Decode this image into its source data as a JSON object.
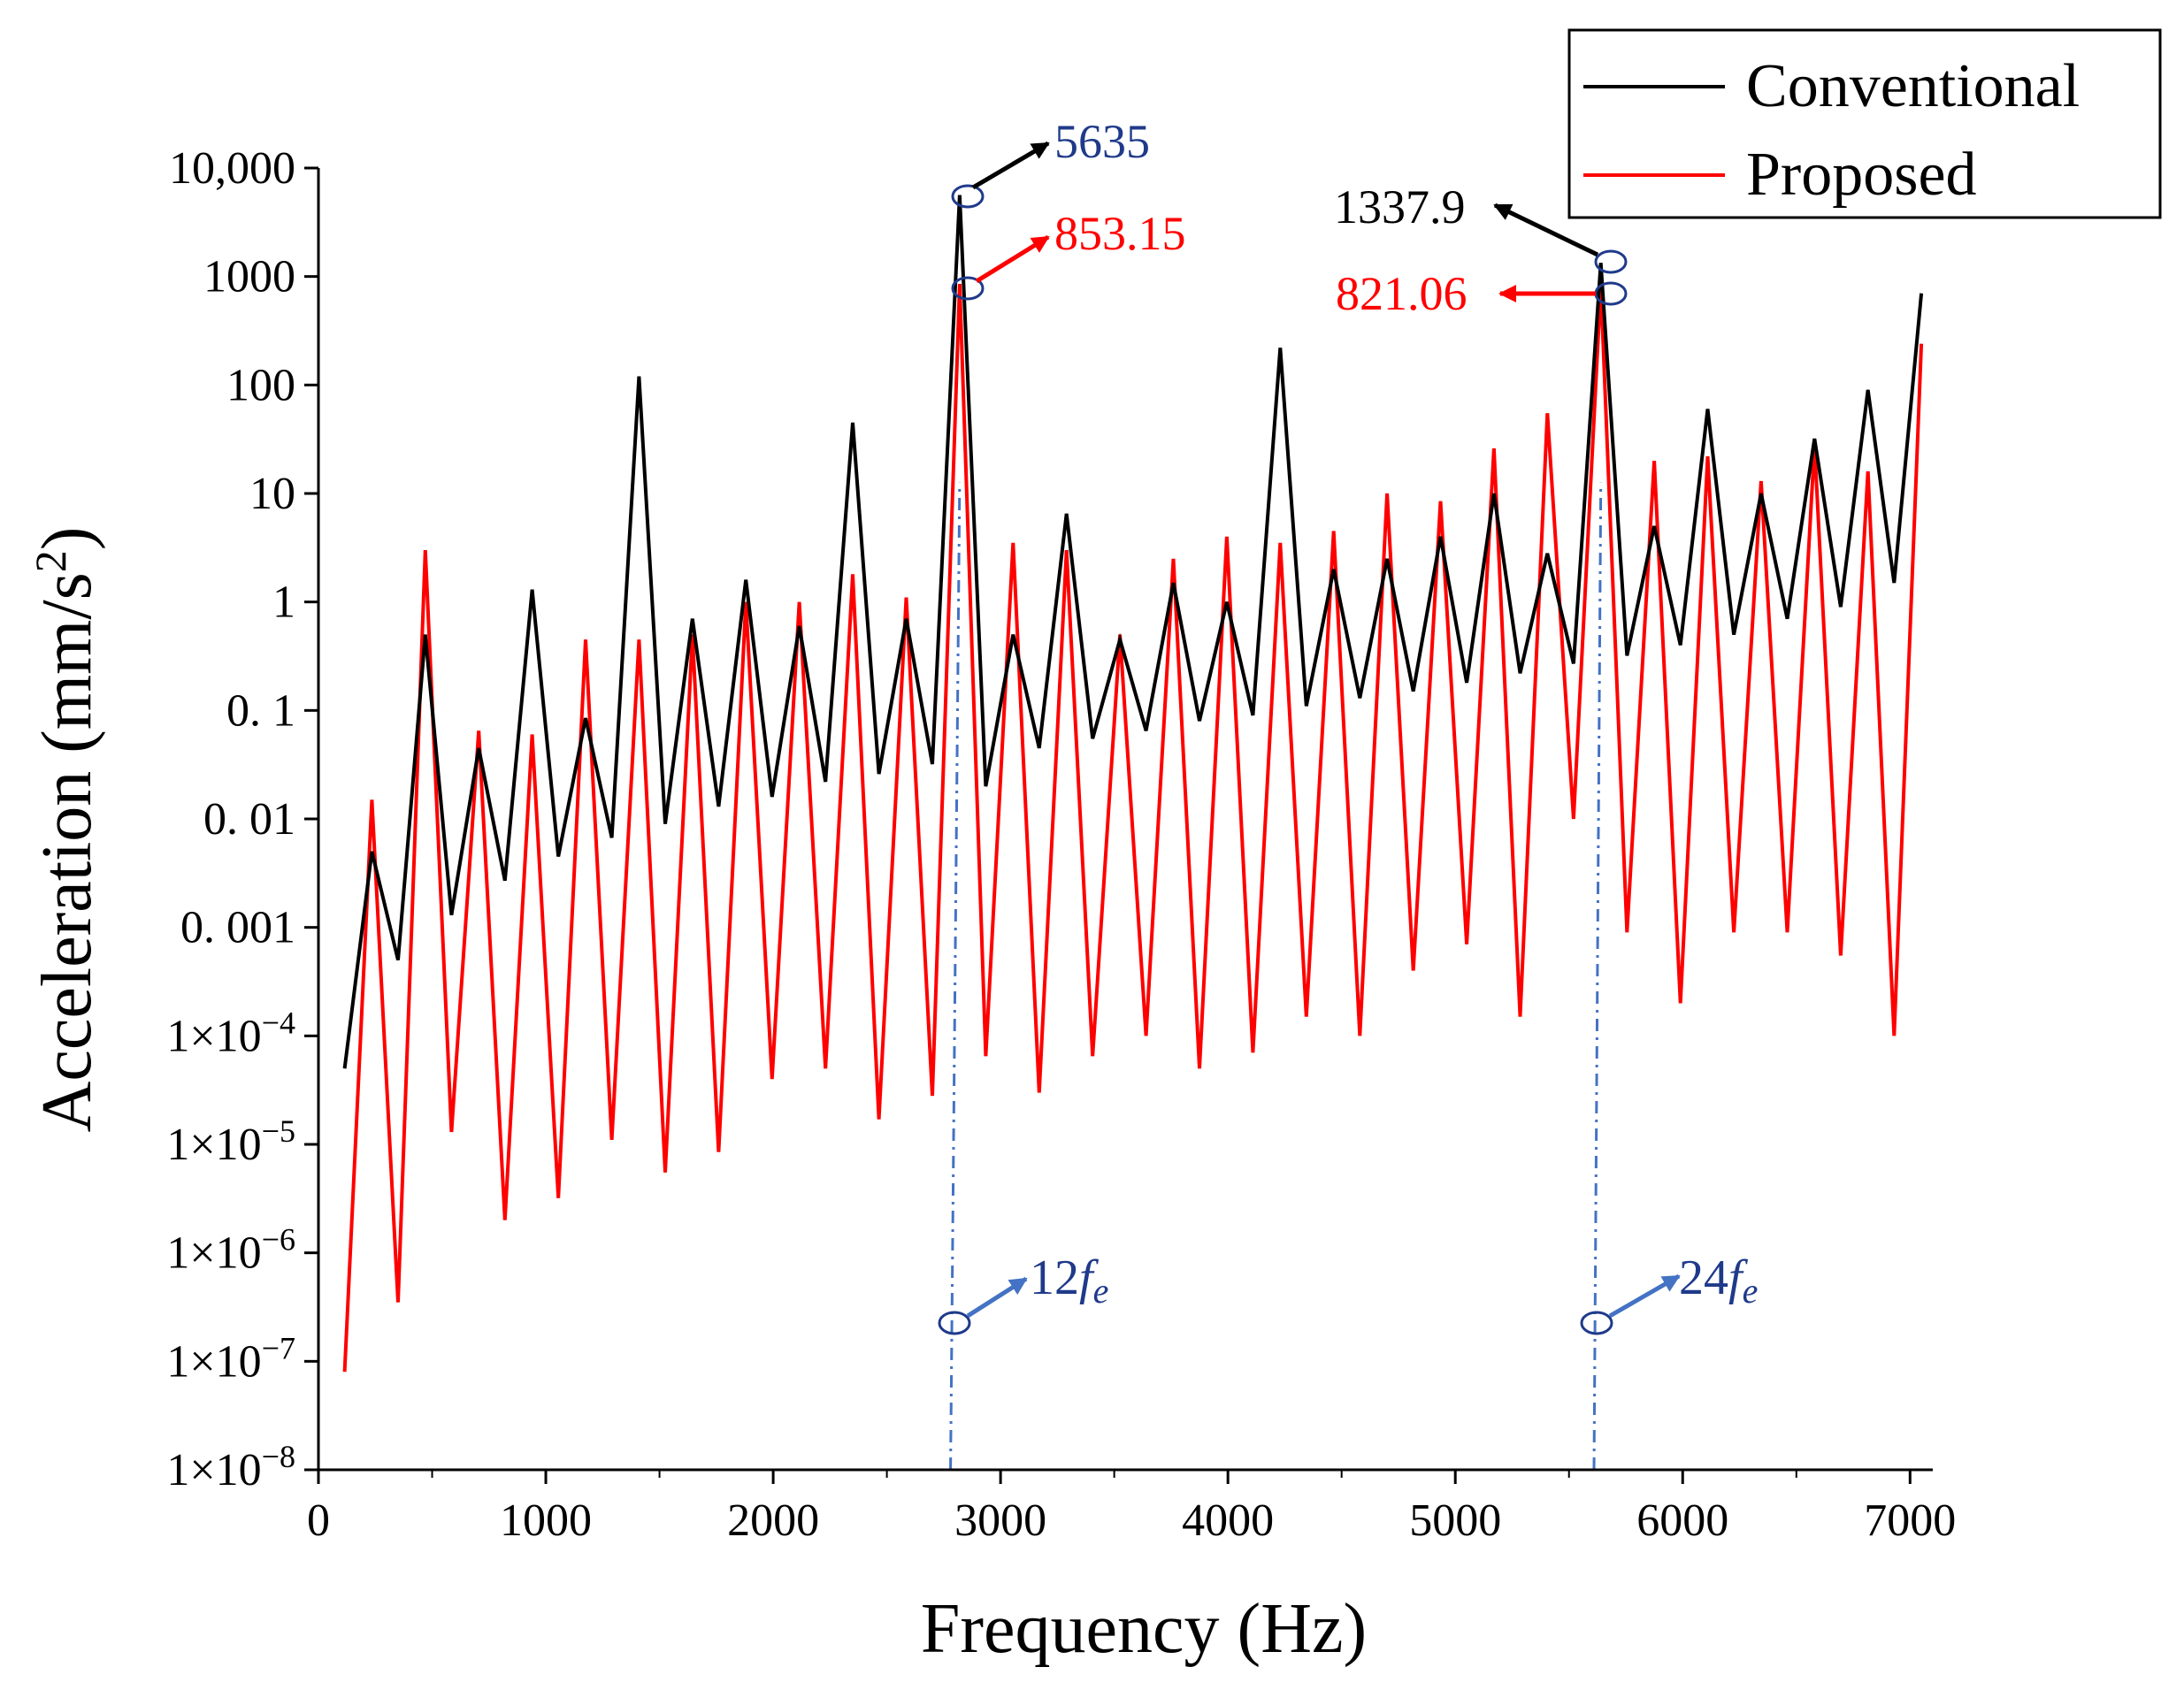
{
  "chart_data": {
    "type": "line",
    "xlabel": "Frequency (Hz)",
    "ylabel": "Acceleration (mm/s",
    "ylabel_unit_power": "2",
    "ylabel_close": ")",
    "yscale": "log",
    "xlim": [
      0,
      7100
    ],
    "ylim_exponent": [
      -8,
      4
    ],
    "x_ticks": [
      0,
      1000,
      2000,
      3000,
      4000,
      5000,
      6000,
      7000
    ],
    "y_ticks": [
      {
        "exp": 4,
        "text": "10,000"
      },
      {
        "exp": 3,
        "text": "1000"
      },
      {
        "exp": 2,
        "text": "100"
      },
      {
        "exp": 1,
        "text": "10"
      },
      {
        "exp": 0,
        "text": "1"
      },
      {
        "exp": -1,
        "text": "0. 1"
      },
      {
        "exp": -2,
        "text": "0. 01"
      },
      {
        "exp": -3,
        "text": "0. 001"
      },
      {
        "exp": -4,
        "text": "1×10",
        "sup": "−4"
      },
      {
        "exp": -5,
        "text": "1×10",
        "sup": "−5"
      },
      {
        "exp": -6,
        "text": "1×10",
        "sup": "−6"
      },
      {
        "exp": -7,
        "text": "1×10",
        "sup": "−7"
      },
      {
        "exp": -8,
        "text": "1×10",
        "sup": "−8"
      }
    ],
    "legend": {
      "position": "top-right",
      "entries": [
        "Conventional",
        "Proposed"
      ]
    },
    "series": [
      {
        "name": "Conventional",
        "color": "#000000",
        "x": [
          115,
          235,
          350,
          470,
          585,
          705,
          820,
          940,
          1055,
          1175,
          1290,
          1410,
          1525,
          1645,
          1760,
          1880,
          1995,
          2115,
          2230,
          2350,
          2465,
          2585,
          2700,
          2820,
          2935,
          3055,
          3170,
          3290,
          3405,
          3525,
          3640,
          3760,
          3875,
          3995,
          4110,
          4230,
          4345,
          4465,
          4580,
          4700,
          4815,
          4935,
          5050,
          5170,
          5285,
          5405,
          5520,
          5640,
          5755,
          5875,
          5990,
          6110,
          6225,
          6345,
          6460,
          6580,
          6695,
          6815,
          6930,
          7050
        ],
        "y": [
          5e-05,
          0.005,
          0.0005,
          0.5,
          0.0013,
          0.045,
          0.0027,
          1.3,
          0.0045,
          0.085,
          0.0067,
          120,
          0.009,
          0.7,
          0.013,
          1.6,
          0.016,
          0.6,
          0.022,
          45,
          0.026,
          0.7,
          0.032,
          5635,
          0.02,
          0.5,
          0.045,
          6.5,
          0.055,
          0.45,
          0.065,
          1.5,
          0.08,
          1.0,
          0.09,
          220,
          0.11,
          2.0,
          0.13,
          2.5,
          0.15,
          4.0,
          0.18,
          10,
          0.22,
          2.8,
          0.27,
          1337.9,
          0.32,
          5.0,
          0.4,
          60,
          0.5,
          10,
          0.7,
          32,
          0.9,
          90,
          1.5,
          700
        ]
      },
      {
        "name": "Proposed",
        "color": "#ff0000",
        "x": [
          115,
          235,
          350,
          470,
          585,
          705,
          820,
          940,
          1055,
          1175,
          1290,
          1410,
          1525,
          1645,
          1760,
          1880,
          1995,
          2115,
          2230,
          2350,
          2465,
          2585,
          2700,
          2820,
          2935,
          3055,
          3170,
          3290,
          3405,
          3525,
          3640,
          3760,
          3875,
          3995,
          4110,
          4230,
          4345,
          4465,
          4580,
          4700,
          4815,
          4935,
          5050,
          5170,
          5285,
          5405,
          5520,
          5640,
          5755,
          5875,
          5990,
          6110,
          6225,
          6345,
          6460,
          6580,
          6695,
          6815,
          6930,
          7050
        ],
        "y": [
          8e-08,
          0.015,
          3.5e-07,
          3.0,
          1.3e-05,
          0.065,
          2e-06,
          0.06,
          3.2e-06,
          0.45,
          1.1e-05,
          0.45,
          5.5e-06,
          0.5,
          8.5e-06,
          1.0,
          4e-05,
          1.0,
          5e-05,
          1.8,
          1.7e-05,
          1.1,
          2.8e-05,
          853.15,
          6.5e-05,
          3.5,
          3e-05,
          3.0,
          6.5e-05,
          0.5,
          0.0001,
          2.5,
          5e-05,
          4.0,
          7e-05,
          3.5,
          0.00015,
          4.5,
          0.0001,
          10,
          0.0004,
          8.5,
          0.0007,
          26,
          0.00015,
          55,
          0.01,
          821.06,
          0.0009,
          20,
          0.0002,
          22,
          0.0009,
          13,
          0.0009,
          28,
          0.00055,
          16,
          0.0001,
          240
        ]
      }
    ],
    "annotations": [
      {
        "text": "5635",
        "color": "#1f3a8a"
      },
      {
        "text": "853.15",
        "color": "#ff0000"
      },
      {
        "text": "1337.9",
        "color": "#000000"
      },
      {
        "text": "821.06",
        "color": "#ff0000"
      }
    ],
    "harmonic_markers": [
      {
        "label": "12",
        "sub": "e",
        "x": 2780
      },
      {
        "label": "24",
        "sub": "e",
        "x": 5610
      }
    ]
  }
}
